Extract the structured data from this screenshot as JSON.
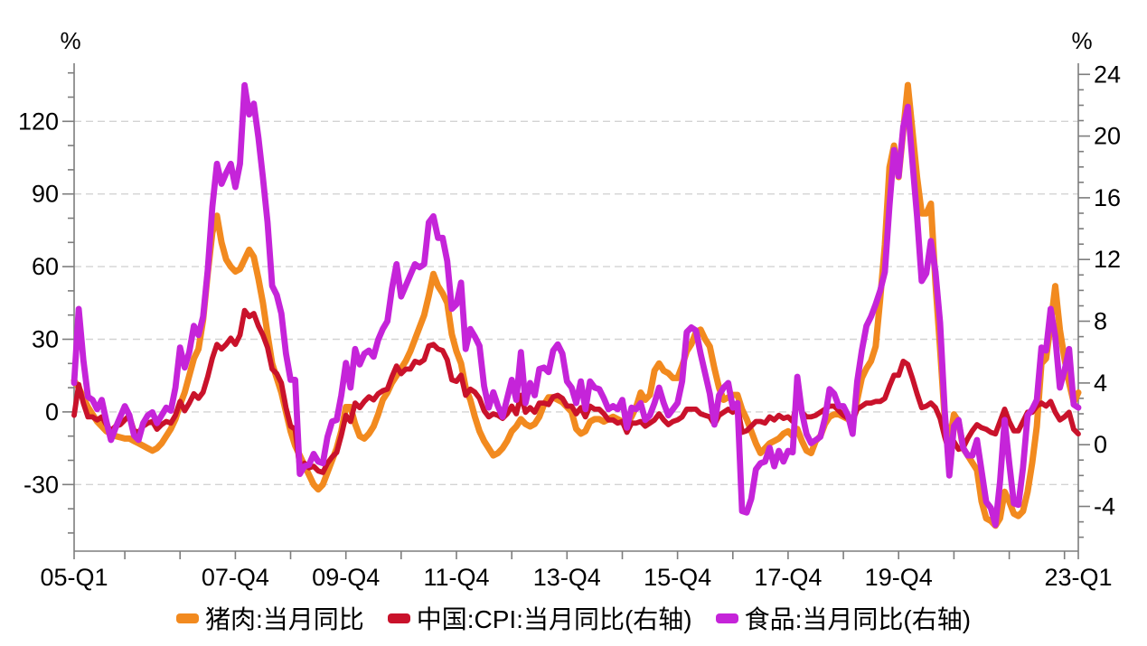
{
  "chart_data": {
    "type": "line",
    "title": "",
    "frequency": "monthly",
    "x_start": "2005-01",
    "x_end": "2023-03",
    "legend_position": "bottom",
    "grid": "horizontal-dashed",
    "colors": {
      "gridline": "#d3d3d3",
      "axis": "#7d7d7d",
      "text": "#000000",
      "background": "#ffffff"
    },
    "axes": {
      "left": {
        "unit": "%",
        "min": -57.5,
        "max": 144,
        "major_ticks": [
          120,
          90,
          60,
          30,
          0,
          -30
        ],
        "minor_tick_step": 10,
        "gridlines_at_major_ticks": true
      },
      "right": {
        "unit": "%",
        "min": -6.9,
        "max": 24.72,
        "major_ticks": [
          24,
          20,
          16,
          12,
          8,
          4,
          0,
          -4
        ],
        "minor_tick_step": 1,
        "gridlines_at_major_ticks": false
      }
    },
    "x_tick_month_indices": [
      0,
      11,
      23,
      35,
      47,
      59,
      71,
      83,
      95,
      107,
      119,
      131,
      143,
      155,
      167,
      179,
      191,
      203,
      215,
      218
    ],
    "x_tick_labels": [
      {
        "month_index": 0,
        "label": "05-Q1"
      },
      {
        "month_index": 35,
        "label": "07-Q4"
      },
      {
        "month_index": 59,
        "label": "09-Q4"
      },
      {
        "month_index": 83,
        "label": "11-Q4"
      },
      {
        "month_index": 107,
        "label": "13-Q4"
      },
      {
        "month_index": 131,
        "label": "15-Q4"
      },
      {
        "month_index": 155,
        "label": "17-Q4"
      },
      {
        "month_index": 179,
        "label": "19-Q4"
      },
      {
        "month_index": 218,
        "label": "23-Q1"
      }
    ],
    "series": [
      {
        "name": "猪肉:当月同比",
        "axis": "left",
        "color": "#F28A1F",
        "values": [
          13,
          10,
          6,
          2,
          -1,
          -4,
          -6,
          -8,
          -9,
          -10,
          -10.5,
          -11,
          -11,
          -12,
          -13,
          -14,
          -15,
          -16,
          -15,
          -13,
          -10,
          -7,
          -3,
          3,
          8,
          15,
          22,
          26,
          38,
          57,
          74,
          81,
          70,
          63,
          60,
          58,
          59,
          63,
          67,
          64,
          55,
          45,
          32,
          20,
          14,
          8,
          0,
          -8,
          -14,
          -18,
          -22,
          -26,
          -30,
          -32,
          -30,
          -25,
          -20,
          -15,
          -8,
          2,
          2,
          -5,
          -10,
          -11,
          -9,
          -6,
          -1,
          5,
          8,
          12,
          15,
          18,
          21,
          25,
          30,
          35,
          40,
          48,
          57,
          52,
          49,
          45,
          32,
          25,
          20,
          10,
          5,
          -2,
          -8,
          -12,
          -15,
          -18,
          -17,
          -15,
          -12,
          -8,
          -6,
          -3,
          -5,
          -6,
          -5,
          -2,
          3,
          6,
          6,
          5,
          4,
          2,
          0,
          -7,
          -9,
          -8,
          -4,
          -3,
          -3,
          -4,
          -3,
          -2,
          -3,
          -4,
          -5,
          -2,
          2,
          8,
          5,
          7,
          17,
          20,
          17,
          16,
          14,
          14,
          19,
          25,
          28,
          33,
          34,
          30,
          27,
          18,
          10,
          5,
          6,
          7,
          7,
          1,
          -3,
          -8,
          -13,
          -17,
          -15,
          -13,
          -12,
          -11,
          -9,
          -8,
          -10,
          -7,
          -12,
          -16,
          -17,
          -12,
          -10,
          -5,
          -2,
          -1,
          -1,
          -2,
          -3,
          -5,
          5,
          14,
          18,
          21,
          27,
          47,
          69,
          101,
          110,
          97,
          116,
          135,
          116,
          97,
          82,
          82,
          86,
          53,
          26,
          -3,
          -13,
          -1,
          -4,
          -15,
          -18,
          -21,
          -24,
          -37,
          -44,
          -45,
          -47,
          -44,
          -33,
          -37,
          -42,
          -43,
          -41,
          -33,
          -21,
          -6,
          20,
          22,
          36,
          52,
          34,
          22,
          12,
          4,
          8
        ]
      },
      {
        "name": "中国:CPI:当月同比(右轴)",
        "axis": "right",
        "color": "#C9122B",
        "values": [
          1.9,
          3.9,
          2.7,
          1.8,
          1.8,
          1.6,
          1.8,
          1.3,
          0.9,
          1.2,
          1.3,
          1.6,
          1.9,
          0.9,
          0.8,
          1.2,
          1.4,
          1.5,
          1.0,
          1.3,
          1.5,
          1.4,
          1.9,
          2.8,
          2.2,
          2.7,
          3.3,
          3.0,
          3.4,
          4.4,
          5.6,
          6.5,
          6.2,
          6.5,
          6.9,
          6.5,
          7.1,
          8.7,
          8.3,
          8.5,
          7.7,
          7.1,
          6.3,
          4.9,
          4.6,
          4.0,
          2.4,
          1.2,
          1.0,
          -1.6,
          -1.2,
          -1.5,
          -1.4,
          -1.7,
          -1.8,
          -1.2,
          -0.8,
          -0.5,
          0.6,
          1.9,
          1.5,
          2.7,
          2.4,
          2.8,
          3.1,
          2.9,
          3.3,
          3.5,
          3.6,
          4.4,
          5.1,
          4.6,
          4.9,
          4.9,
          5.4,
          5.3,
          5.5,
          6.4,
          6.5,
          6.2,
          6.1,
          5.5,
          4.2,
          4.1,
          4.5,
          3.2,
          3.6,
          3.4,
          3.0,
          2.2,
          1.8,
          2.0,
          1.9,
          1.7,
          2.0,
          2.5,
          2.0,
          3.2,
          2.1,
          2.4,
          2.1,
          2.7,
          2.7,
          2.6,
          3.1,
          3.2,
          3.0,
          2.5,
          2.5,
          2.0,
          2.4,
          1.8,
          2.5,
          2.3,
          2.3,
          2.0,
          1.6,
          1.6,
          1.4,
          1.5,
          0.8,
          1.4,
          1.4,
          1.5,
          1.2,
          1.4,
          1.6,
          2.0,
          1.6,
          1.3,
          1.5,
          1.6,
          1.8,
          2.3,
          2.3,
          2.3,
          2.0,
          1.9,
          1.8,
          1.3,
          1.9,
          2.1,
          2.3,
          2.1,
          2.5,
          0.8,
          0.9,
          1.2,
          1.5,
          1.5,
          1.4,
          1.8,
          1.6,
          1.9,
          1.7,
          1.8,
          1.5,
          2.9,
          2.1,
          1.8,
          1.8,
          1.9,
          2.1,
          2.3,
          2.5,
          2.5,
          2.2,
          1.9,
          1.7,
          1.5,
          2.3,
          2.5,
          2.7,
          2.7,
          2.8,
          2.8,
          3.0,
          3.8,
          4.5,
          4.5,
          5.4,
          5.2,
          4.3,
          3.3,
          2.4,
          2.5,
          2.7,
          2.4,
          1.7,
          0.5,
          -0.5,
          0.2,
          -0.3,
          -0.2,
          0.4,
          0.9,
          1.3,
          1.1,
          1.0,
          0.8,
          0.7,
          1.5,
          2.3,
          1.5,
          0.9,
          0.9,
          1.5,
          2.1,
          2.1,
          2.5,
          2.7,
          2.5,
          2.8,
          2.1,
          1.6,
          1.8,
          2.1,
          1.0,
          0.7
        ]
      },
      {
        "name": "食品:当月同比(右轴)",
        "axis": "right",
        "color": "#C524D9",
        "values": [
          4.0,
          8.8,
          5.5,
          3.1,
          2.9,
          2.3,
          2.9,
          1.5,
          0.3,
          1.1,
          1.8,
          2.5,
          1.9,
          0.6,
          0.3,
          1.4,
          1.9,
          2.1,
          1.4,
          1.9,
          2.4,
          2.2,
          3.7,
          6.3,
          5.0,
          6.0,
          7.7,
          7.1,
          8.3,
          11.3,
          15.4,
          18.2,
          16.9,
          17.6,
          18.2,
          16.7,
          18.2,
          23.3,
          21.4,
          22.1,
          19.9,
          17.3,
          14.4,
          10.3,
          9.7,
          8.5,
          5.9,
          4.2,
          4.2,
          -1.9,
          -1.4,
          -1.3,
          -0.6,
          -1.1,
          -1.2,
          0.5,
          1.5,
          1.6,
          3.2,
          5.3,
          3.7,
          6.2,
          5.2,
          5.9,
          6.1,
          5.7,
          6.8,
          7.5,
          8.0,
          10.1,
          11.7,
          9.6,
          10.3,
          11.0,
          11.7,
          11.5,
          11.7,
          14.4,
          14.8,
          13.4,
          13.4,
          11.9,
          8.8,
          9.1,
          10.5,
          6.2,
          7.5,
          7.0,
          6.4,
          3.8,
          2.4,
          3.4,
          2.5,
          1.8,
          3.0,
          4.2,
          2.9,
          6.0,
          2.7,
          4.0,
          3.2,
          4.9,
          5.0,
          4.7,
          6.1,
          6.5,
          5.9,
          4.1,
          3.7,
          2.7,
          4.1,
          2.3,
          4.1,
          3.7,
          3.6,
          3.0,
          2.3,
          2.5,
          2.3,
          2.9,
          1.1,
          2.4,
          2.3,
          2.7,
          1.6,
          1.9,
          2.7,
          3.7,
          2.7,
          1.9,
          2.3,
          2.7,
          4.1,
          7.3,
          7.6,
          7.4,
          5.9,
          4.6,
          3.3,
          1.3,
          3.2,
          3.7,
          4.0,
          2.4,
          2.7,
          -4.3,
          -4.4,
          -3.5,
          -1.6,
          -1.2,
          -1.1,
          -0.2,
          -1.4,
          -0.4,
          -1.1,
          -0.4,
          -0.5,
          4.4,
          2.1,
          0.7,
          0.1,
          0.3,
          0.5,
          1.7,
          3.6,
          3.3,
          2.5,
          2.5,
          1.9,
          0.7,
          4.1,
          6.1,
          7.7,
          8.3,
          9.1,
          10.0,
          11.2,
          15.5,
          19.1,
          17.4,
          20.6,
          21.9,
          18.3,
          14.8,
          10.6,
          11.1,
          13.2,
          11.2,
          7.9,
          2.2,
          -2.0,
          1.2,
          1.6,
          -0.2,
          -0.7,
          -0.7,
          0.3,
          -1.7,
          -3.7,
          -4.1,
          -5.2,
          -2.4,
          1.6,
          -1.2,
          -3.8,
          -3.9,
          -1.5,
          1.9,
          2.3,
          2.9,
          6.3,
          6.1,
          8.8,
          7.0,
          3.7,
          4.8,
          6.2,
          2.6,
          2.4
        ]
      }
    ]
  }
}
